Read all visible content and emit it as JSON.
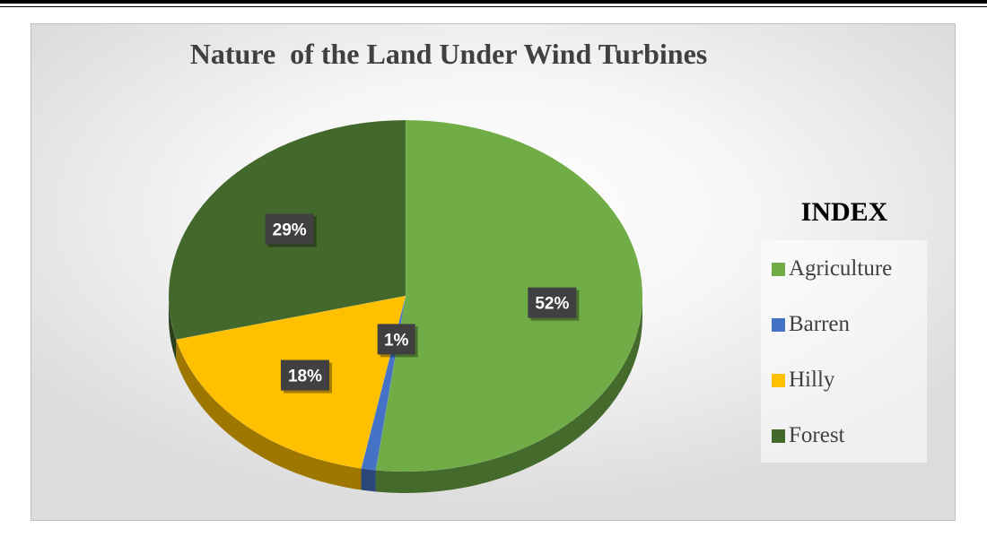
{
  "chart_data": {
    "type": "pie",
    "title": "Nature  of the Land Under Wind Turbines",
    "legend_title": "INDEX",
    "legend_position": "right",
    "slices": [
      {
        "label": "Agriculture",
        "value": 52,
        "display": "52%",
        "color": "#70ad47"
      },
      {
        "label": "Barren",
        "value": 1,
        "display": "1%",
        "color": "#4472c4"
      },
      {
        "label": "Hilly",
        "value": 18,
        "display": "18%",
        "color": "#ffc000"
      },
      {
        "label": "Forest",
        "value": 29,
        "display": "29%",
        "color": "#43682b"
      }
    ]
  }
}
